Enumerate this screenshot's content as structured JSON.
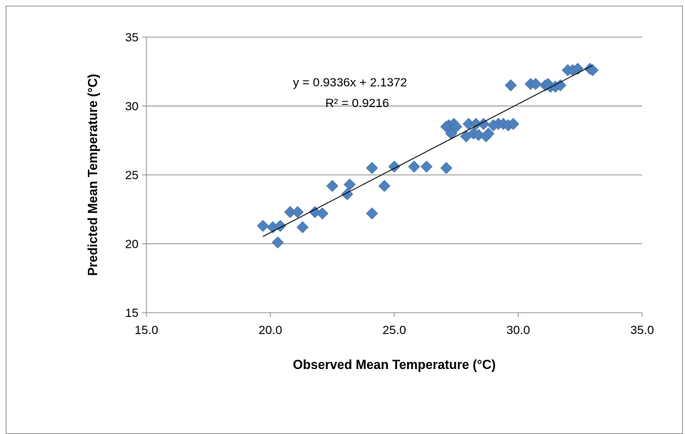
{
  "chart_data": {
    "type": "scatter",
    "xlabel": "Observed Mean Temperature (°C)",
    "ylabel": "Predicted Mean Temperature (°C)",
    "xlim": [
      15,
      35
    ],
    "ylim": [
      15,
      35
    ],
    "x_ticks": [
      "15.0",
      "20.0",
      "25.0",
      "30.0",
      "35.0"
    ],
    "y_ticks": [
      "15",
      "20",
      "25",
      "30",
      "35"
    ],
    "grid": "horizontal",
    "legend": "none",
    "marker_color": "#4f81bd",
    "trendline": {
      "slope": 0.9336,
      "intercept": 2.1372,
      "x_range": [
        19.7,
        33.0
      ],
      "color": "#000000"
    },
    "annotations": {
      "equation": "y = 0.9336x + 2.1372",
      "r_squared": "R² = 0.9216"
    },
    "series": [
      {
        "x": [
          19.7,
          20.1,
          20.3,
          20.4,
          20.8,
          21.1,
          21.3,
          21.8,
          22.1,
          22.5,
          23.1,
          23.2,
          24.1,
          24.1,
          24.6,
          25.0,
          25.8,
          26.3,
          27.1,
          27.1,
          27.2,
          27.3,
          27.4,
          27.5,
          27.9,
          28.0,
          28.2,
          28.3,
          28.4,
          28.6,
          28.7,
          28.8,
          29.0,
          29.2,
          29.4,
          29.6,
          29.7,
          29.8,
          30.5,
          30.7,
          31.1,
          31.2,
          31.3,
          31.5,
          31.7,
          32.0,
          32.2,
          32.4,
          32.9,
          33.0
        ],
        "y": [
          21.3,
          21.2,
          20.1,
          21.3,
          22.3,
          22.3,
          21.2,
          22.3,
          22.2,
          24.2,
          23.6,
          24.3,
          25.5,
          22.2,
          24.2,
          25.6,
          25.6,
          25.6,
          25.5,
          28.5,
          28.6,
          28.0,
          28.7,
          28.5,
          27.8,
          28.7,
          28.0,
          28.7,
          27.9,
          28.7,
          27.8,
          28.0,
          28.6,
          28.7,
          28.7,
          28.6,
          31.5,
          28.7,
          31.6,
          31.6,
          31.5,
          31.6,
          31.4,
          31.4,
          31.5,
          32.6,
          32.6,
          32.7,
          32.7,
          32.6
        ]
      }
    ]
  }
}
